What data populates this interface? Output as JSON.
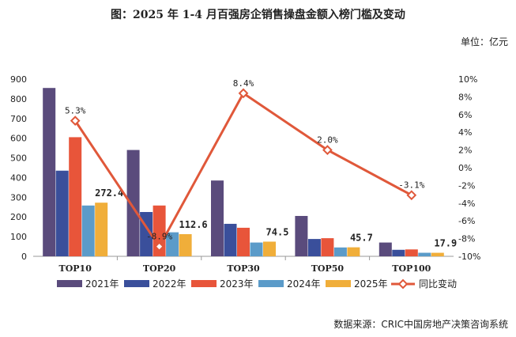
{
  "header": {
    "title": "图：2025 年 1-4 月百强房企销售操盘金额入榜门槛及变动",
    "unit": "单位：亿元"
  },
  "footer": {
    "source": "数据来源：CRIC中国房地产决策咨询系统"
  },
  "colors": {
    "2021年": "#5a4b7c",
    "2022年": "#3a4f9b",
    "2023年": "#e8553a",
    "2024年": "#5b9bc9",
    "2025年": "#f0ae3a",
    "同比变动": "#e0583a"
  },
  "chart_data": {
    "type": "bar",
    "categories": [
      "TOP10",
      "TOP20",
      "TOP30",
      "TOP50",
      "TOP100"
    ],
    "series": [
      {
        "name": "2021年",
        "values": [
          855,
          540,
          385,
          205,
          70
        ]
      },
      {
        "name": "2022年",
        "values": [
          435,
          225,
          165,
          88,
          33
        ]
      },
      {
        "name": "2023年",
        "values": [
          605,
          258,
          145,
          92,
          35
        ]
      },
      {
        "name": "2024年",
        "values": [
          258,
          122,
          70,
          45,
          18
        ]
      },
      {
        "name": "2025年",
        "values": [
          272.4,
          112.6,
          74.5,
          45.7,
          17.9
        ]
      }
    ],
    "bar_labels": {
      "series": "2025年",
      "labels": [
        "272.4",
        "112.6",
        "74.5",
        "45.7",
        "17.9"
      ]
    },
    "line": {
      "name": "同比变动",
      "axis": "right",
      "values": [
        5.3,
        -8.9,
        8.4,
        2.0,
        -3.1
      ],
      "labels": [
        "5.3%",
        "-8.9%",
        "8.4%",
        "2.0%",
        "-3.1%"
      ]
    },
    "y_left": {
      "min": 0,
      "max": 900,
      "ticks": [
        "0",
        "100",
        "200",
        "300",
        "400",
        "500",
        "600",
        "700",
        "800",
        "900"
      ]
    },
    "y_right": {
      "min": -10,
      "max": 10,
      "ticks": [
        "-10%",
        "-8%",
        "-6%",
        "-4%",
        "-2%",
        "0%",
        "2%",
        "4%",
        "6%",
        "8%",
        "10%"
      ]
    },
    "grid": false,
    "legend_position": "bottom"
  }
}
